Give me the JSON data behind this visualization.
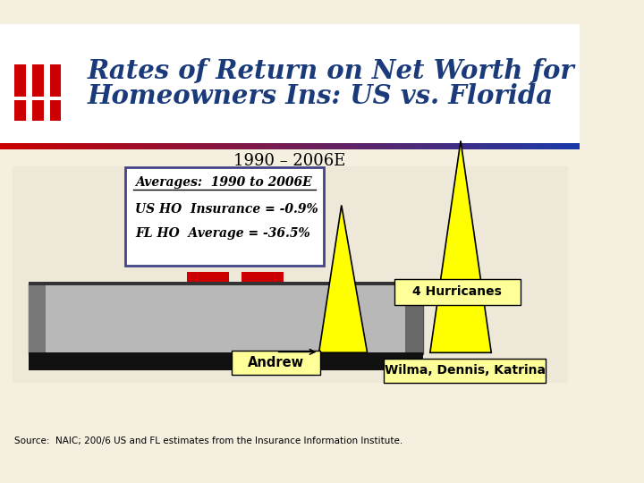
{
  "title_line1": "Rates of Return on Net Worth for",
  "title_line2": "Homeowners Ins: US vs. Florida",
  "subtitle": "1990 – 2006E",
  "avg_box_title": "Averages:  1990 to 2006E",
  "avg_us": "US HO  Insurance = -0.9%",
  "avg_fl": "FL HO  Average = -36.5%",
  "label_andrew": "Andrew",
  "label_hurricanes": "4 Hurricanes",
  "label_wilma": "Wilma, Dennis, Katrina",
  "source": "Source:  NAIC; 200/6 US and FL estimates from the Insurance Information Institute.",
  "bg_color": "#f5efe0",
  "title_color": "#1a3a7a",
  "triangle_yellow": "#ffff00",
  "triangle_outline": "#000000",
  "gradient_left": "#cc0000",
  "gradient_right": "#1a3aaa"
}
